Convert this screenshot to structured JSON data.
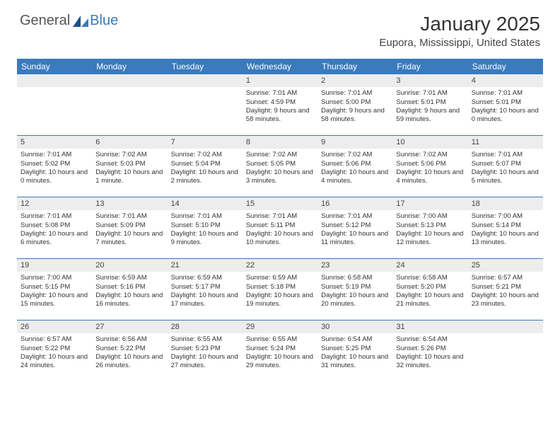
{
  "brand": {
    "general": "General",
    "blue": "Blue"
  },
  "title": {
    "month": "January 2025",
    "location": "Eupora, Mississippi, United States"
  },
  "colors": {
    "header_bar": "#3a7abd",
    "daynum_bg": "#ededed",
    "text": "#333333",
    "logo_gray": "#555555",
    "logo_blue": "#3a7abd",
    "background": "#ffffff"
  },
  "fonts": {
    "family": "Arial",
    "title_size": 28,
    "location_size": 15,
    "dow_size": 12,
    "daynum_size": 11,
    "body_size": 9.5
  },
  "days_of_week": [
    "Sunday",
    "Monday",
    "Tuesday",
    "Wednesday",
    "Thursday",
    "Friday",
    "Saturday"
  ],
  "weeks": [
    [
      {
        "blank": true
      },
      {
        "blank": true
      },
      {
        "blank": true
      },
      {
        "num": "1",
        "sunrise": "Sunrise: 7:01 AM",
        "sunset": "Sunset: 4:59 PM",
        "daylight": "Daylight: 9 hours and 58 minutes."
      },
      {
        "num": "2",
        "sunrise": "Sunrise: 7:01 AM",
        "sunset": "Sunset: 5:00 PM",
        "daylight": "Daylight: 9 hours and 58 minutes."
      },
      {
        "num": "3",
        "sunrise": "Sunrise: 7:01 AM",
        "sunset": "Sunset: 5:01 PM",
        "daylight": "Daylight: 9 hours and 59 minutes."
      },
      {
        "num": "4",
        "sunrise": "Sunrise: 7:01 AM",
        "sunset": "Sunset: 5:01 PM",
        "daylight": "Daylight: 10 hours and 0 minutes."
      }
    ],
    [
      {
        "num": "5",
        "sunrise": "Sunrise: 7:01 AM",
        "sunset": "Sunset: 5:02 PM",
        "daylight": "Daylight: 10 hours and 0 minutes."
      },
      {
        "num": "6",
        "sunrise": "Sunrise: 7:02 AM",
        "sunset": "Sunset: 5:03 PM",
        "daylight": "Daylight: 10 hours and 1 minute."
      },
      {
        "num": "7",
        "sunrise": "Sunrise: 7:02 AM",
        "sunset": "Sunset: 5:04 PM",
        "daylight": "Daylight: 10 hours and 2 minutes."
      },
      {
        "num": "8",
        "sunrise": "Sunrise: 7:02 AM",
        "sunset": "Sunset: 5:05 PM",
        "daylight": "Daylight: 10 hours and 3 minutes."
      },
      {
        "num": "9",
        "sunrise": "Sunrise: 7:02 AM",
        "sunset": "Sunset: 5:06 PM",
        "daylight": "Daylight: 10 hours and 4 minutes."
      },
      {
        "num": "10",
        "sunrise": "Sunrise: 7:02 AM",
        "sunset": "Sunset: 5:06 PM",
        "daylight": "Daylight: 10 hours and 4 minutes."
      },
      {
        "num": "11",
        "sunrise": "Sunrise: 7:01 AM",
        "sunset": "Sunset: 5:07 PM",
        "daylight": "Daylight: 10 hours and 5 minutes."
      }
    ],
    [
      {
        "num": "12",
        "sunrise": "Sunrise: 7:01 AM",
        "sunset": "Sunset: 5:08 PM",
        "daylight": "Daylight: 10 hours and 6 minutes."
      },
      {
        "num": "13",
        "sunrise": "Sunrise: 7:01 AM",
        "sunset": "Sunset: 5:09 PM",
        "daylight": "Daylight: 10 hours and 7 minutes."
      },
      {
        "num": "14",
        "sunrise": "Sunrise: 7:01 AM",
        "sunset": "Sunset: 5:10 PM",
        "daylight": "Daylight: 10 hours and 9 minutes."
      },
      {
        "num": "15",
        "sunrise": "Sunrise: 7:01 AM",
        "sunset": "Sunset: 5:11 PM",
        "daylight": "Daylight: 10 hours and 10 minutes."
      },
      {
        "num": "16",
        "sunrise": "Sunrise: 7:01 AM",
        "sunset": "Sunset: 5:12 PM",
        "daylight": "Daylight: 10 hours and 11 minutes."
      },
      {
        "num": "17",
        "sunrise": "Sunrise: 7:00 AM",
        "sunset": "Sunset: 5:13 PM",
        "daylight": "Daylight: 10 hours and 12 minutes."
      },
      {
        "num": "18",
        "sunrise": "Sunrise: 7:00 AM",
        "sunset": "Sunset: 5:14 PM",
        "daylight": "Daylight: 10 hours and 13 minutes."
      }
    ],
    [
      {
        "num": "19",
        "sunrise": "Sunrise: 7:00 AM",
        "sunset": "Sunset: 5:15 PM",
        "daylight": "Daylight: 10 hours and 15 minutes."
      },
      {
        "num": "20",
        "sunrise": "Sunrise: 6:59 AM",
        "sunset": "Sunset: 5:16 PM",
        "daylight": "Daylight: 10 hours and 16 minutes."
      },
      {
        "num": "21",
        "sunrise": "Sunrise: 6:59 AM",
        "sunset": "Sunset: 5:17 PM",
        "daylight": "Daylight: 10 hours and 17 minutes."
      },
      {
        "num": "22",
        "sunrise": "Sunrise: 6:59 AM",
        "sunset": "Sunset: 5:18 PM",
        "daylight": "Daylight: 10 hours and 19 minutes."
      },
      {
        "num": "23",
        "sunrise": "Sunrise: 6:58 AM",
        "sunset": "Sunset: 5:19 PM",
        "daylight": "Daylight: 10 hours and 20 minutes."
      },
      {
        "num": "24",
        "sunrise": "Sunrise: 6:58 AM",
        "sunset": "Sunset: 5:20 PM",
        "daylight": "Daylight: 10 hours and 21 minutes."
      },
      {
        "num": "25",
        "sunrise": "Sunrise: 6:57 AM",
        "sunset": "Sunset: 5:21 PM",
        "daylight": "Daylight: 10 hours and 23 minutes."
      }
    ],
    [
      {
        "num": "26",
        "sunrise": "Sunrise: 6:57 AM",
        "sunset": "Sunset: 5:22 PM",
        "daylight": "Daylight: 10 hours and 24 minutes."
      },
      {
        "num": "27",
        "sunrise": "Sunrise: 6:56 AM",
        "sunset": "Sunset: 5:22 PM",
        "daylight": "Daylight: 10 hours and 26 minutes."
      },
      {
        "num": "28",
        "sunrise": "Sunrise: 6:55 AM",
        "sunset": "Sunset: 5:23 PM",
        "daylight": "Daylight: 10 hours and 27 minutes."
      },
      {
        "num": "29",
        "sunrise": "Sunrise: 6:55 AM",
        "sunset": "Sunset: 5:24 PM",
        "daylight": "Daylight: 10 hours and 29 minutes."
      },
      {
        "num": "30",
        "sunrise": "Sunrise: 6:54 AM",
        "sunset": "Sunset: 5:25 PM",
        "daylight": "Daylight: 10 hours and 31 minutes."
      },
      {
        "num": "31",
        "sunrise": "Sunrise: 6:54 AM",
        "sunset": "Sunset: 5:26 PM",
        "daylight": "Daylight: 10 hours and 32 minutes."
      },
      {
        "blank": true
      }
    ]
  ]
}
